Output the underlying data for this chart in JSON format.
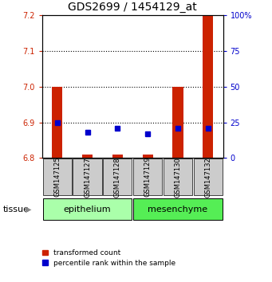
{
  "title": "GDS2699 / 1454129_at",
  "samples": [
    "GSM147125",
    "GSM147127",
    "GSM147128",
    "GSM147129",
    "GSM147130",
    "GSM147132"
  ],
  "tissue_groups": [
    {
      "label": "epithelium",
      "color": "#aaffaa"
    },
    {
      "label": "mesenchyme",
      "color": "#55ee55"
    }
  ],
  "ylim_left": [
    6.8,
    7.2
  ],
  "ylim_right": [
    0,
    100
  ],
  "yticks_left": [
    6.8,
    6.9,
    7.0,
    7.1,
    7.2
  ],
  "yticks_right": [
    0,
    25,
    50,
    75,
    100
  ],
  "ytick_labels_right": [
    "0",
    "25",
    "50",
    "75",
    "100%"
  ],
  "red_values": [
    7.0,
    6.81,
    6.81,
    6.81,
    7.0,
    7.2
  ],
  "blue_values_pct": [
    25,
    18,
    21,
    17,
    21,
    21
  ],
  "red_bar_bottom": 6.8,
  "bar_width": 0.35,
  "red_color": "#cc2200",
  "blue_color": "#0000cc",
  "background_color": "#ffffff",
  "sample_box_color": "#cccccc",
  "legend_red_label": "transformed count",
  "legend_blue_label": "percentile rank within the sample",
  "tissue_label": "tissue",
  "title_fontsize": 10,
  "tick_fontsize": 7,
  "sample_fontsize": 6,
  "tissue_fontsize": 8,
  "legend_fontsize": 6.5
}
